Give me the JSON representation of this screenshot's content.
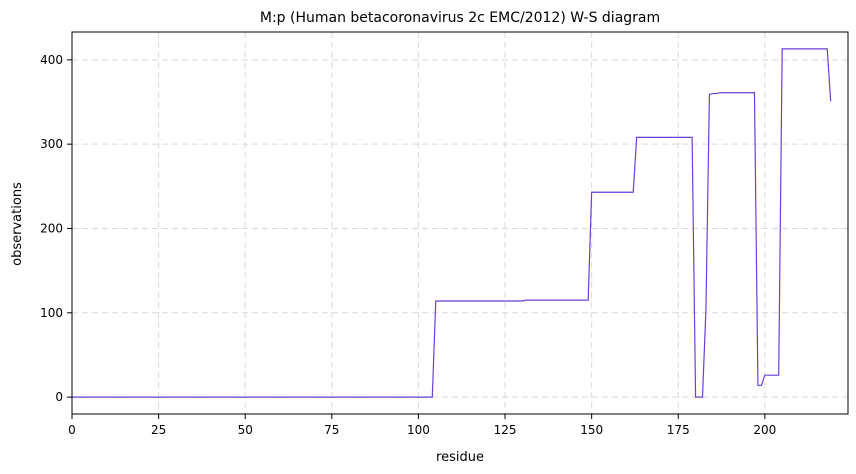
{
  "chart_data": {
    "type": "line",
    "title": "M:p (Human betacoronavirus 2c EMC/2012) W-S diagram",
    "xlabel": "residue",
    "ylabel": "observations",
    "xlim": [
      0,
      224
    ],
    "ylim": [
      -20,
      433
    ],
    "xticks": [
      0,
      25,
      50,
      75,
      100,
      125,
      150,
      175,
      200
    ],
    "yticks": [
      0,
      100,
      200,
      300,
      400
    ],
    "grid": true,
    "series": [
      {
        "color": "#6a3fd6",
        "x": [
          0,
          104,
          105,
          130,
          131,
          149,
          150,
          162,
          163,
          179,
          180,
          182,
          183,
          184,
          185,
          186,
          187,
          197,
          198,
          199,
          200,
          204,
          205,
          218,
          219
        ],
        "y": [
          0,
          0,
          114,
          114,
          115,
          115,
          243,
          243,
          308,
          308,
          0,
          0,
          105,
          359,
          360,
          360,
          361,
          361,
          14,
          14,
          26,
          26,
          413,
          413,
          351
        ]
      }
    ]
  }
}
